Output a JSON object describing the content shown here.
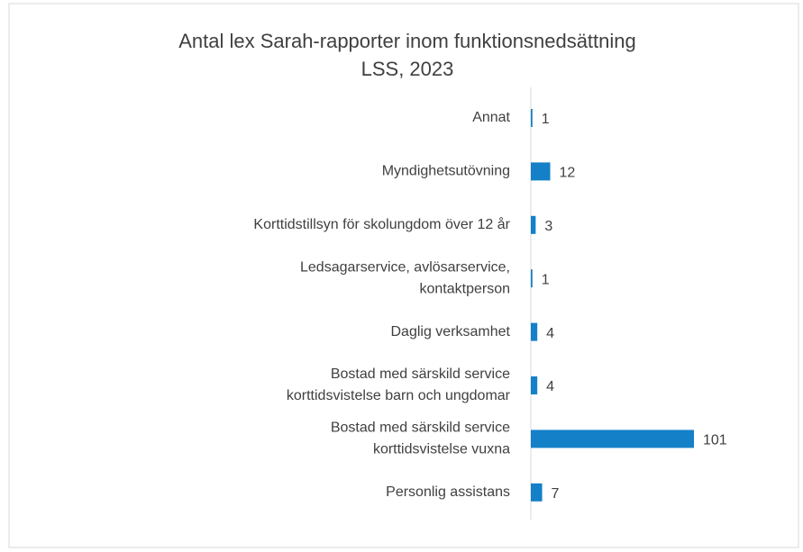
{
  "chart_data": {
    "type": "bar",
    "orientation": "horizontal",
    "title": [
      "Antal lex Sarah-rapporter inom funktionsnedsättning",
      "LSS, 2023"
    ],
    "categories": [
      [
        "Annat"
      ],
      [
        "Myndighetsutövning"
      ],
      [
        "Korttidstillsyn för skolungdom över 12 år"
      ],
      [
        "Ledsagarservice, avlösarservice,",
        "kontaktperson"
      ],
      [
        "Daglig verksamhet"
      ],
      [
        "Bostad med särskild service",
        "korttidsvistelse barn och ungdomar"
      ],
      [
        "Bostad med särskild service",
        "korttidsvistelse vuxna"
      ],
      [
        "Personlig assistans"
      ]
    ],
    "values": [
      1,
      12,
      3,
      1,
      4,
      4,
      101,
      7
    ],
    "color": "#1380c8"
  }
}
